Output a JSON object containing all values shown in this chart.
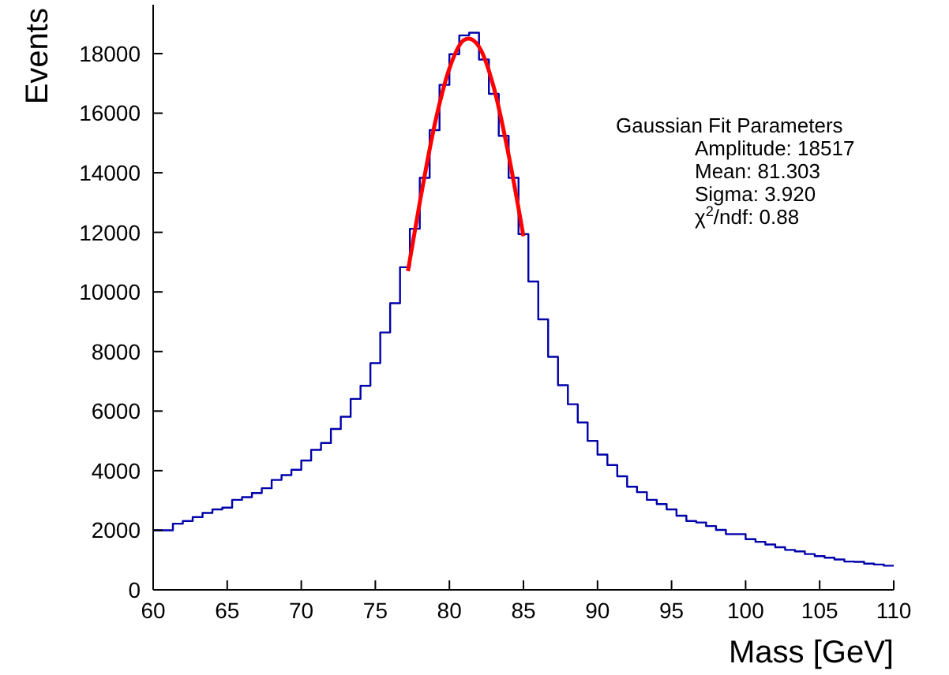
{
  "chart_data": {
    "type": "histogram",
    "xlabel": "Mass [GeV]",
    "ylabel": "Events",
    "xlim": [
      60,
      110
    ],
    "xticks": [
      60,
      65,
      70,
      75,
      80,
      85,
      90,
      95,
      100,
      105,
      110
    ],
    "ylim": [
      0,
      19640
    ],
    "yticks": [
      0,
      2000,
      4000,
      6000,
      8000,
      10000,
      12000,
      14000,
      16000,
      18000
    ],
    "series": [
      {
        "color": "#0000aa",
        "bins": [
          60,
          60.667,
          61.333,
          62,
          62.667,
          63.333,
          64,
          64.667,
          65.333,
          66,
          66.667,
          67.333,
          68,
          68.667,
          69.333,
          70,
          70.667,
          71.333,
          72,
          72.667,
          73.333,
          74,
          74.667,
          75.333,
          76,
          76.667,
          77.333,
          78,
          78.667,
          79.333,
          80,
          80.667,
          81.333,
          82,
          82.667,
          83.333,
          84,
          84.667,
          85.333,
          86,
          86.667,
          87.333,
          88,
          88.667,
          89.333,
          90,
          90.667,
          91.333,
          92,
          92.667,
          93.333,
          94,
          94.667,
          95.333,
          96,
          96.667,
          97.333,
          98,
          98.667,
          99.333,
          100,
          100.667,
          101.333,
          102,
          102.667,
          103.333,
          104,
          104.667,
          105.333,
          106,
          106.667,
          107.333,
          108,
          108.667,
          109.333,
          110
        ],
        "values": [
          2000,
          2000,
          2220,
          2310,
          2440,
          2580,
          2700,
          2760,
          3020,
          3110,
          3250,
          3410,
          3690,
          3850,
          4030,
          4340,
          4700,
          4930,
          5400,
          5810,
          6410,
          6850,
          7610,
          8640,
          9620,
          10830,
          12120,
          13830,
          15430,
          16950,
          17980,
          18610,
          18700,
          17800,
          16650,
          15240,
          13830,
          11940,
          10350,
          9080,
          7820,
          6870,
          6230,
          5620,
          5000,
          4540,
          4190,
          3810,
          3460,
          3280,
          3020,
          2880,
          2700,
          2490,
          2310,
          2260,
          2140,
          2010,
          1870,
          1870,
          1700,
          1610,
          1520,
          1430,
          1340,
          1290,
          1200,
          1130,
          1080,
          1020,
          950,
          940,
          880,
          850,
          810
        ]
      },
      {
        "type": "line",
        "color": "#ff0000",
        "x": [
          77.2,
          78,
          79,
          80,
          81,
          81.3,
          82,
          83,
          84,
          85
        ],
        "values": [
          10700,
          13000,
          15600,
          17500,
          18460,
          18500,
          18230,
          16860,
          14600,
          11870
        ]
      }
    ],
    "annotations": [
      "Gaussian Fit Parameters",
      "Amplitude: 18517",
      "Mean: 81.303",
      "Sigma: 3.920",
      "χ$^{2}$/ndf: 0.88"
    ]
  }
}
